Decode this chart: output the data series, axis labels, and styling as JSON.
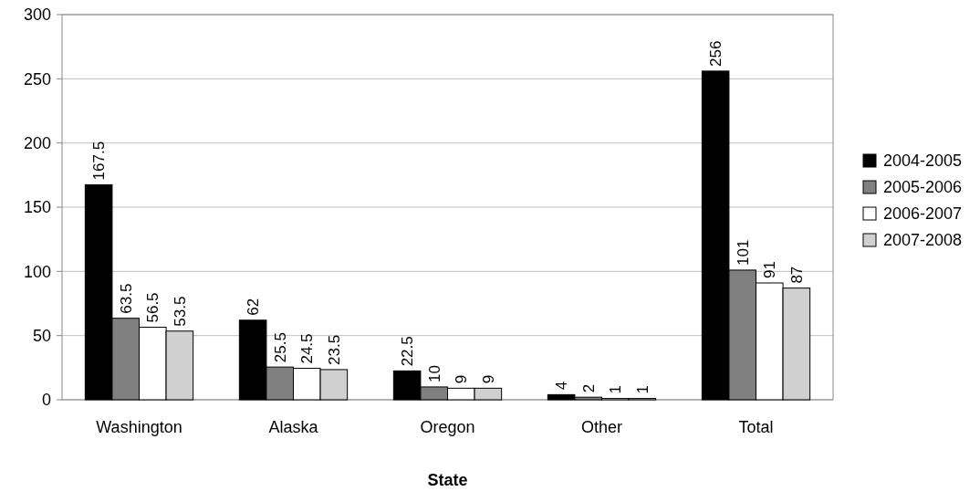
{
  "chart_data": {
    "type": "bar",
    "xlabel": "State",
    "categories": [
      "Washington",
      "Alaska",
      "Oregon",
      "Other",
      "Total"
    ],
    "series": [
      {
        "name": "2004-2005",
        "color": "#000000",
        "values": [
          167.5,
          62,
          22.5,
          4,
          256
        ]
      },
      {
        "name": "2005-2006",
        "color": "#808080",
        "values": [
          63.5,
          25.5,
          10,
          2,
          101
        ]
      },
      {
        "name": "2006-2007",
        "color": "#ffffff",
        "values": [
          56.5,
          24.5,
          9,
          1,
          91
        ]
      },
      {
        "name": "2007-2008",
        "color": "#d0d0d0",
        "values": [
          53.5,
          23.5,
          9,
          1,
          87
        ]
      }
    ],
    "ylim": [
      0,
      300
    ],
    "yticks": [
      0,
      50,
      100,
      150,
      200,
      250,
      300
    ],
    "grid": "y",
    "legend": "right",
    "data_labels": true
  }
}
